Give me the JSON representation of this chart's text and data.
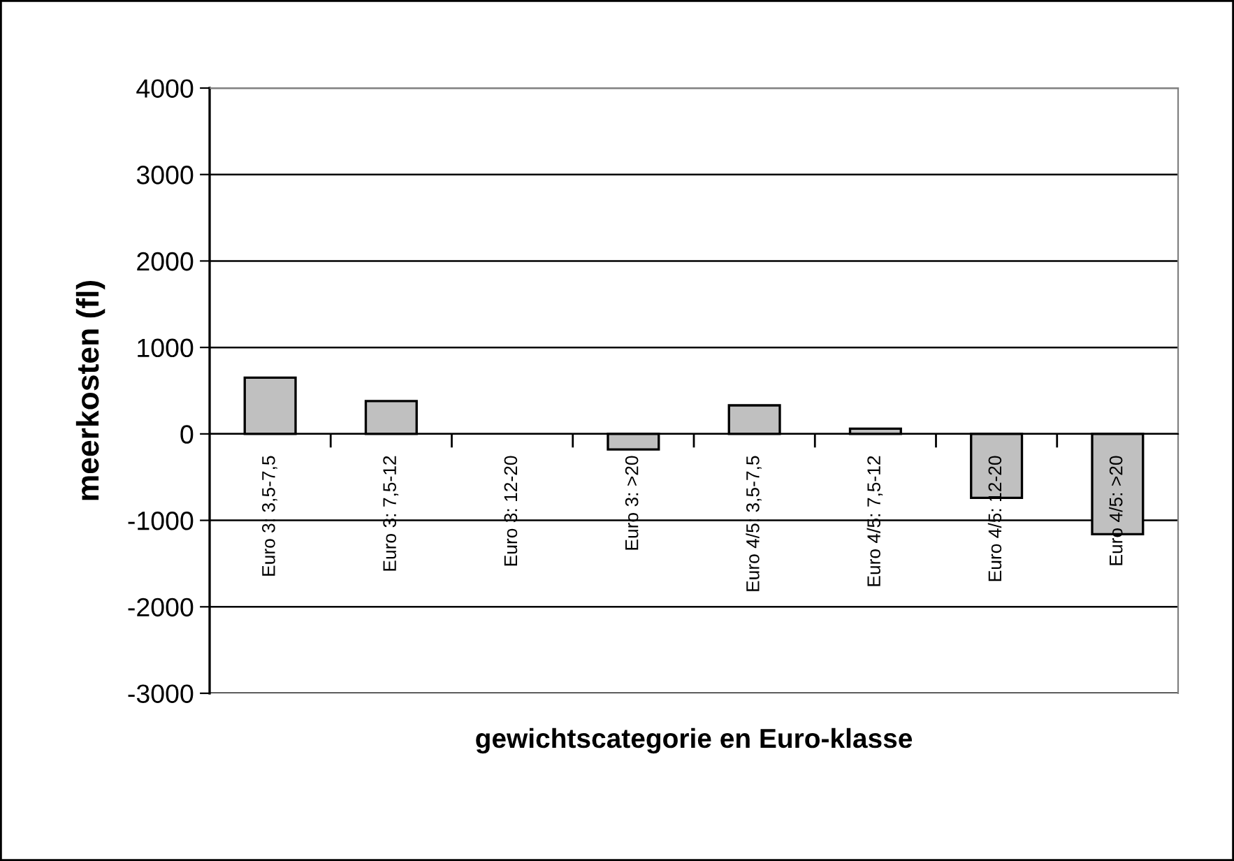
{
  "chart_data": {
    "type": "bar",
    "xlabel": "gewichtscategorie en Euro-klasse",
    "ylabel": "meerkosten (fl)",
    "categories": [
      "Euro 3: 3,5-7,5",
      "Euro 3: 7,5-12",
      "Euro 3: 12-20",
      "Euro 3: >20",
      "Euro 4/5: 3,5-7,5",
      "Euro 4/5: 7,5-12",
      "Euro 4/5: 12-20",
      "Euro 4/5: >20"
    ],
    "values": [
      650,
      380,
      0,
      -180,
      330,
      60,
      -740,
      -1160
    ],
    "color": "#c0c0c0",
    "ylim": [
      -3000,
      4000
    ],
    "yticks": [
      -3000,
      -2000,
      -1000,
      0,
      1000,
      2000,
      3000,
      4000
    ],
    "grid": "y"
  }
}
